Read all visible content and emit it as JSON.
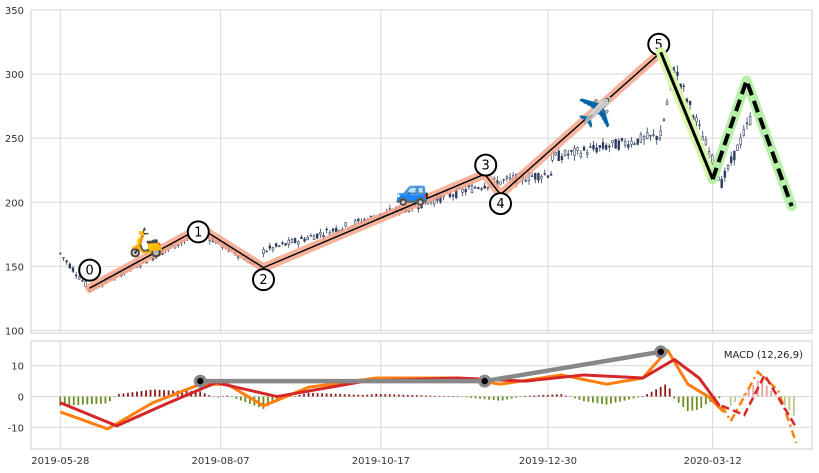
{
  "chart_data": {
    "type": "candlestick",
    "price_panel": {
      "ylim": [
        98,
        350
      ],
      "yticks": [
        100,
        150,
        200,
        250,
        300,
        350
      ],
      "grid": true,
      "candles": {
        "color": "#2f3f5f",
        "segments": [
          {
            "from": "2019-05-28",
            "to": "2019-06-10",
            "start": 160,
            "end": 132
          },
          {
            "from": "2019-06-10",
            "to": "2019-07-29",
            "start": 132,
            "end": 177
          },
          {
            "from": "2019-07-29",
            "to": "2019-08-26",
            "start": 177,
            "end": 148
          },
          {
            "from": "2019-08-26",
            "to": "2019-12-02",
            "start": 162,
            "end": 214
          },
          {
            "from": "2019-12-02",
            "to": "2020-01-01",
            "start": 214,
            "end": 223
          },
          {
            "from": "2020-01-01",
            "to": "2020-02-18",
            "start": 235,
            "end": 252
          },
          {
            "from": "2020-02-18",
            "to": "2020-02-24",
            "start": 252,
            "end": 305
          },
          {
            "from": "2020-02-24",
            "to": "2020-03-16",
            "start": 305,
            "end": 215
          },
          {
            "from": "2020-03-16",
            "to": "2020-03-30",
            "start": 215,
            "end": 270
          }
        ]
      },
      "wave_points": [
        {
          "label": "0",
          "date": "2019-06-10",
          "price": 133
        },
        {
          "label": "1",
          "date": "2019-07-29",
          "price": 180
        },
        {
          "label": "2",
          "date": "2019-08-26",
          "price": 149
        },
        {
          "label": "3",
          "date": "2019-12-02",
          "price": 222
        },
        {
          "label": "4",
          "date": "2019-12-09",
          "price": 206
        },
        {
          "label": "5",
          "date": "2020-02-18",
          "price": 317
        }
      ],
      "wave_colors": {
        "band": "#f4a58a",
        "line": "#000000"
      },
      "projection": {
        "solid": [
          {
            "date": "2020-02-18",
            "price": 317
          },
          {
            "date": "2020-03-12",
            "price": 218
          }
        ],
        "dashed": [
          {
            "date": "2020-03-12",
            "price": 218
          },
          {
            "date": "2020-03-27",
            "price": 295
          },
          {
            "date": "2020-04-16",
            "price": 197
          }
        ],
        "band_color": "#b7f0a9",
        "band_color_solid": "#d9f7a8",
        "line_color": "#000000"
      },
      "icons": [
        {
          "name": "scooter",
          "glyph": "🛵",
          "date": "2019-07-05",
          "price": 168
        },
        {
          "name": "car",
          "glyph": "🚙",
          "date": "2019-10-31",
          "price": 208
        },
        {
          "name": "airplane",
          "glyph": "✈️",
          "date": "2020-01-20",
          "price": 269
        }
      ]
    },
    "macd_panel": {
      "label": "MACD (12,26,9)",
      "ylim": [
        -17,
        18
      ],
      "yticks": [
        -10,
        0,
        10
      ],
      "grid": true,
      "macd_color": "#ff7f0e",
      "signal_color": "#d62728",
      "hist_pos_color": "#8b1a1a",
      "hist_neg_color": "#6b8e23",
      "macd": [
        {
          "date": "2019-05-28",
          "value": -5
        },
        {
          "date": "2019-06-18",
          "value": -10.5
        },
        {
          "date": "2019-07-08",
          "value": -2
        },
        {
          "date": "2019-07-29",
          "value": 4
        },
        {
          "date": "2019-08-10",
          "value": 4
        },
        {
          "date": "2019-08-26",
          "value": -3
        },
        {
          "date": "2019-09-15",
          "value": 3
        },
        {
          "date": "2019-10-15",
          "value": 6
        },
        {
          "date": "2019-11-20",
          "value": 6
        },
        {
          "date": "2019-12-09",
          "value": 4
        },
        {
          "date": "2020-01-05",
          "value": 7
        },
        {
          "date": "2020-01-25",
          "value": 4
        },
        {
          "date": "2020-02-10",
          "value": 6
        },
        {
          "date": "2020-02-21",
          "value": 15
        },
        {
          "date": "2020-03-01",
          "value": 4
        },
        {
          "date": "2020-03-10",
          "value": 0
        },
        {
          "date": "2020-03-17",
          "value": -5
        }
      ],
      "signal": [
        {
          "date": "2019-05-28",
          "value": -2
        },
        {
          "date": "2019-06-22",
          "value": -9.5
        },
        {
          "date": "2019-07-15",
          "value": -2
        },
        {
          "date": "2019-08-05",
          "value": 4.5
        },
        {
          "date": "2019-09-01",
          "value": 0
        },
        {
          "date": "2019-10-10",
          "value": 5
        },
        {
          "date": "2019-11-20",
          "value": 6
        },
        {
          "date": "2019-12-20",
          "value": 5
        },
        {
          "date": "2020-01-15",
          "value": 7
        },
        {
          "date": "2020-02-10",
          "value": 6
        },
        {
          "date": "2020-02-24",
          "value": 12
        },
        {
          "date": "2020-03-06",
          "value": 6
        },
        {
          "date": "2020-03-15",
          "value": -3
        }
      ],
      "macd_projection": [
        {
          "date": "2020-03-16",
          "value": -3
        },
        {
          "date": "2020-03-20",
          "value": -8
        },
        {
          "date": "2020-04-01",
          "value": 8
        },
        {
          "date": "2020-04-10",
          "value": 2
        },
        {
          "date": "2020-04-18",
          "value": -15
        }
      ],
      "signal_projection": [
        {
          "date": "2020-03-16",
          "value": -3
        },
        {
          "date": "2020-03-26",
          "value": -6
        },
        {
          "date": "2020-04-04",
          "value": 7
        },
        {
          "date": "2020-04-18",
          "value": -10
        }
      ],
      "hist_projection": [
        {
          "date": "2020-03-20",
          "value": -3
        },
        {
          "date": "2020-03-29",
          "value": 3
        },
        {
          "date": "2020-04-02",
          "value": 6
        },
        {
          "date": "2020-04-18",
          "value": -7
        }
      ],
      "pivot_line": [
        {
          "date": "2019-07-29",
          "value": 5
        },
        {
          "date": "2019-12-02",
          "value": 5
        },
        {
          "date": "2020-02-18",
          "value": 14.5
        }
      ],
      "pivot_color": "#888888"
    },
    "x_axis": {
      "type": "date",
      "range": [
        "2019-05-15",
        "2020-04-25"
      ],
      "tick_labels": [
        "2019-05-28",
        "2019-08-07",
        "2019-10-17",
        "2019-12-30",
        "2020-03-12"
      ]
    }
  }
}
